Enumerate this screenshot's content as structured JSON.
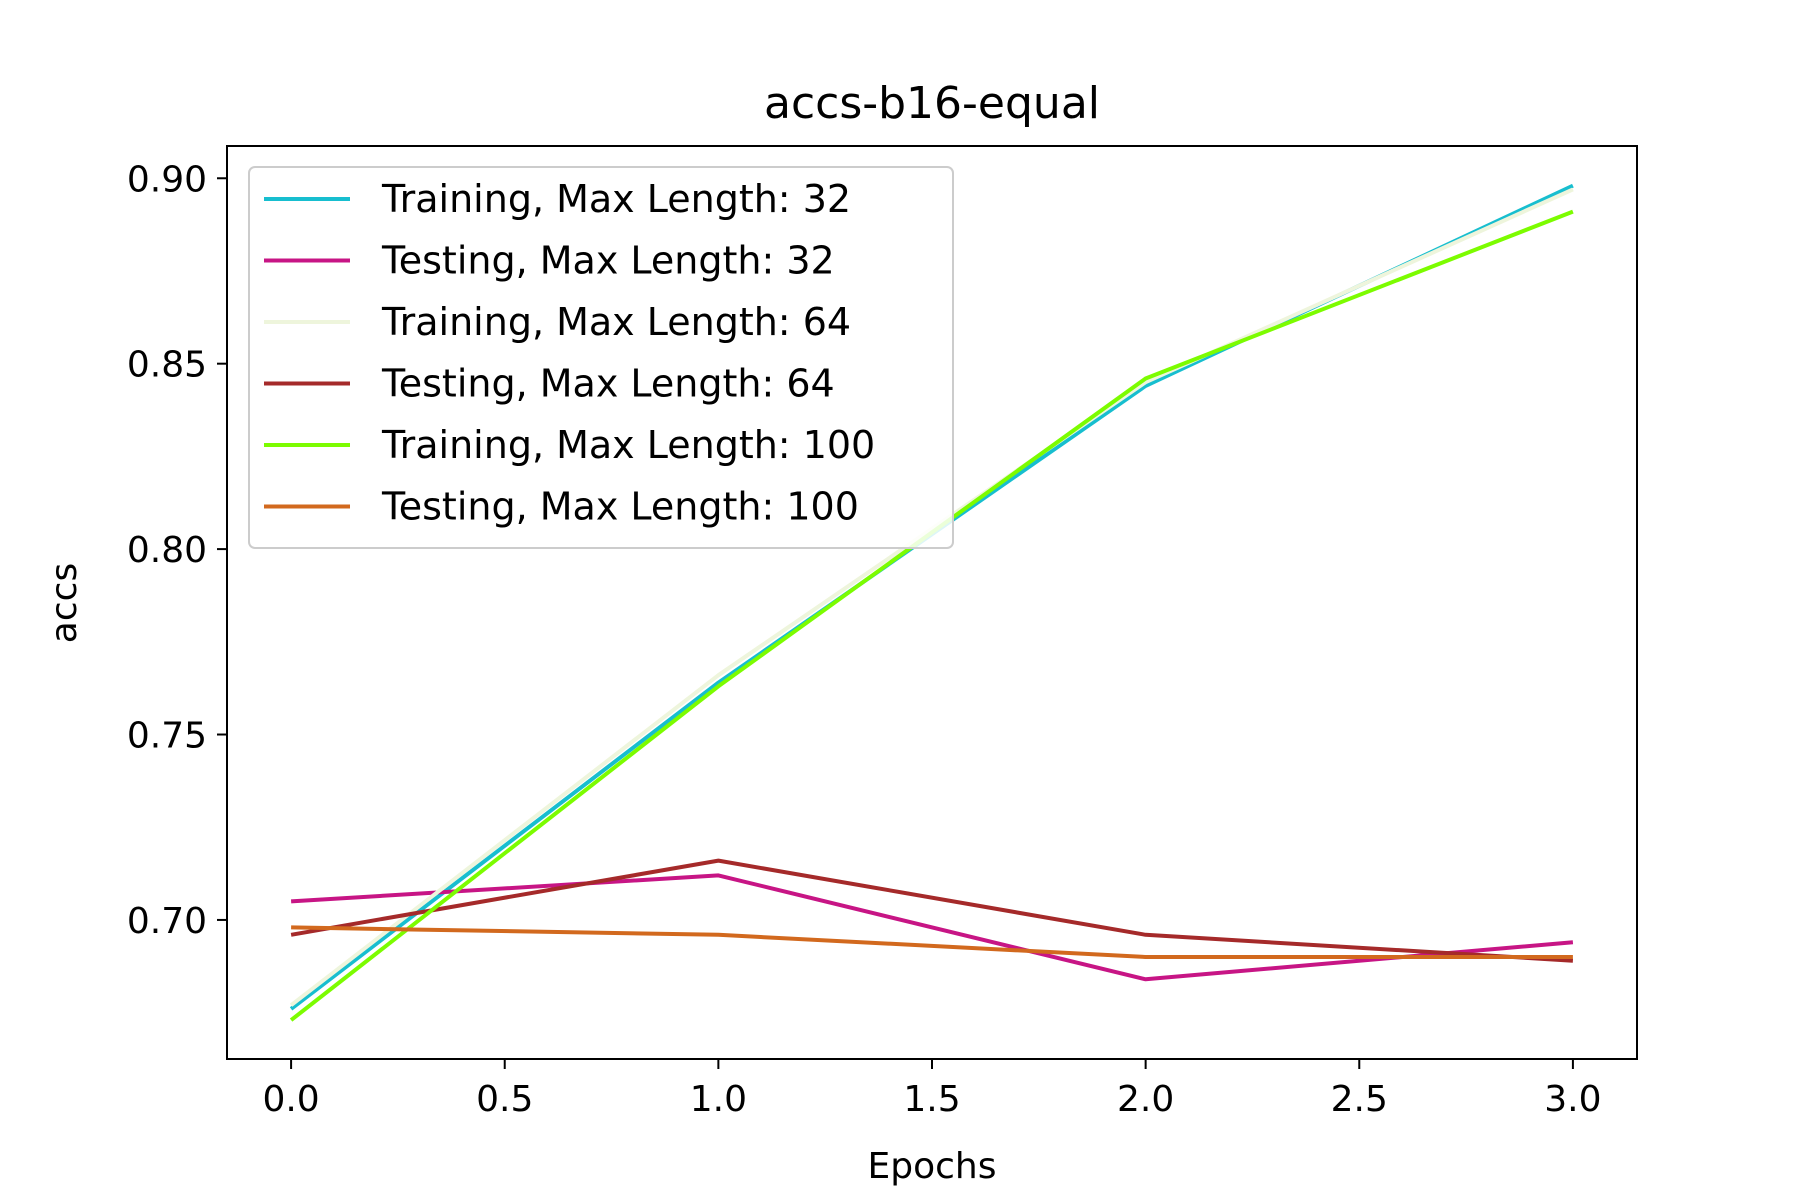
{
  "chart_data": {
    "type": "line",
    "title": "accs-b16-equal",
    "xlabel": "Epochs",
    "ylabel": "accs",
    "x": [
      0,
      1,
      2,
      3
    ],
    "xlim": [
      -0.15,
      3.15
    ],
    "ylim": [
      0.6625,
      0.9087
    ],
    "xticks": [
      0.0,
      0.5,
      1.0,
      1.5,
      2.0,
      2.5,
      3.0
    ],
    "xtick_labels": [
      "0.0",
      "0.5",
      "1.0",
      "1.5",
      "2.0",
      "2.5",
      "3.0"
    ],
    "yticks": [
      0.7,
      0.75,
      0.8,
      0.85,
      0.9
    ],
    "ytick_labels": [
      "0.70",
      "0.75",
      "0.80",
      "0.85",
      "0.90"
    ],
    "grid": false,
    "legend_position": "upper-left",
    "series": [
      {
        "name": "Training, Max Length: 32",
        "color": "#17becf",
        "values": [
          0.676,
          0.764,
          0.844,
          0.898
        ]
      },
      {
        "name": "Testing, Max Length: 32",
        "color": "#c71585",
        "values": [
          0.705,
          0.712,
          0.684,
          0.694
        ]
      },
      {
        "name": "Training, Max Length: 64",
        "color": "#eef5dc",
        "values": [
          0.677,
          0.766,
          0.845,
          0.897
        ]
      },
      {
        "name": "Testing, Max Length: 64",
        "color": "#a52a2a",
        "values": [
          0.696,
          0.716,
          0.696,
          0.689
        ]
      },
      {
        "name": "Training, Max Length: 100",
        "color": "#7cfc00",
        "values": [
          0.673,
          0.763,
          0.846,
          0.891
        ]
      },
      {
        "name": "Testing, Max Length: 100",
        "color": "#d2691e",
        "values": [
          0.698,
          0.696,
          0.69,
          0.69
        ]
      }
    ]
  }
}
